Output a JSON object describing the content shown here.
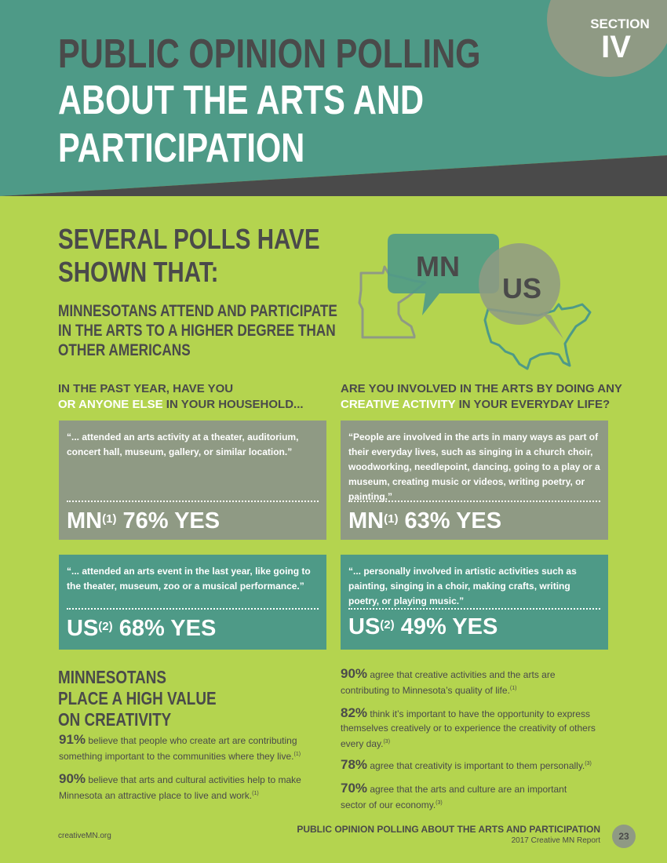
{
  "header": {
    "section_label": "SECTION",
    "section_number": "IV",
    "title_line1": "PUBLIC OPINION POLLING",
    "title_line2": "ABOUT THE ARTS AND",
    "title_line3": "PARTICIPATION"
  },
  "polls": {
    "heading_line1": "SEVERAL POLLS HAVE",
    "heading_line2": "SHOWN THAT:",
    "sub_line1": "MINNESOTANS ATTEND AND PARTICIPATE",
    "sub_line2": "IN THE ARTS TO A HIGHER DEGREE THAN",
    "sub_line3": "OTHER AMERICANS"
  },
  "graphic": {
    "mn_label": "MN",
    "us_label": "US"
  },
  "questions": {
    "left_line1": "IN THE PAST YEAR, HAVE YOU",
    "left_line2_white": "OR ANYONE ELSE",
    "left_line2_rest": " IN YOUR HOUSEHOLD...",
    "right_line1": "ARE YOU INVOLVED IN THE ARTS BY DOING ANY",
    "right_line2_white": "CREATIVE ACTIVITY",
    "right_line2_rest": " IN YOUR EVERYDAY LIFE?"
  },
  "boxes": {
    "mn_attend": {
      "quote": "“... attended an arts activity at a theater, auditorium, concert hall, museum, gallery, or similar location.”",
      "region": "MN",
      "note": "(1)",
      "result": "76% YES"
    },
    "mn_involved": {
      "quote": "“People are involved in the arts in many ways as part of their everyday lives, such as singing in a church choir, woodworking, needlepoint, dancing, going to a play or a museum, creating music or videos, writing poetry, or painting.”",
      "region": "MN",
      "note": "(1)",
      "result": "63% YES"
    },
    "us_attend": {
      "quote": "“... attended an arts event in the last year, like going to the theater, museum, zoo or a musical performance.”",
      "region": "US",
      "note": "(2)",
      "result": "68% YES"
    },
    "us_involved": {
      "quote": "“... personally involved in artistic activities such as painting, singing in a choir, making crafts, writing poetry, or playing music.”",
      "region": "US",
      "note": "(2)",
      "result": "49% YES"
    }
  },
  "value": {
    "heading_line1": "MINNESOTANS",
    "heading_line2": "PLACE A HIGH VALUE",
    "heading_line3": "ON CREATIVITY",
    "left_statements": [
      {
        "pct": "91%",
        "text": " believe that people who create art are contributing something important to the communities where they live.",
        "note": "(1)"
      },
      {
        "pct": "90%",
        "text": " believe that arts and cultural activities help to make Minnesota an attractive place to live and work.",
        "note": "(1)"
      }
    ],
    "right_statements": [
      {
        "pct": "90%",
        "text": " agree that creative activities and the arts are contributing to Minnesota’s quality of life.",
        "note": "(1)"
      },
      {
        "pct": "82%",
        "text": " think it’s important to have the opportunity to express themselves creatively or to experience the creativity of others every day.",
        "note": "(3)"
      },
      {
        "pct": "78%",
        "text": " agree that creativity is important to them personally.",
        "note": "(3)"
      },
      {
        "pct": "70%",
        "text": " agree that the arts and culture are an important sector of our economy.",
        "note": "(3)"
      }
    ]
  },
  "footer": {
    "website": "creativeMN.org",
    "title": "PUBLIC OPINION POLLING ABOUT THE ARTS AND PARTICIPATION",
    "subtitle": "2017 Creative MN Report",
    "page": "23"
  },
  "colors": {
    "page_bg": "#b4d44f",
    "header_teal": "#4e9a87",
    "dark_gray": "#4a4a4a",
    "box_gray": "#8f9a84",
    "box_teal": "#4e9a87"
  }
}
